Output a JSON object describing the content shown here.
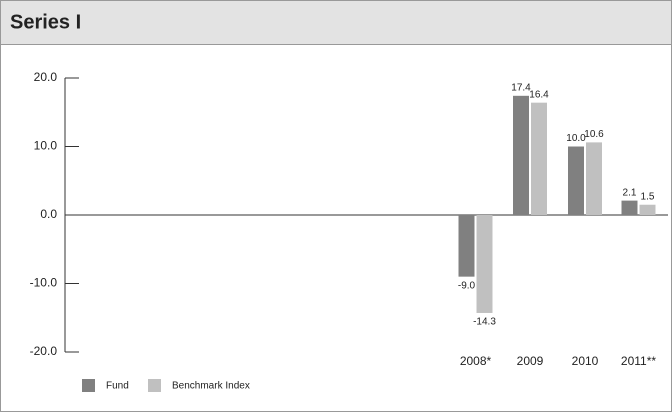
{
  "chart_data": {
    "type": "bar",
    "title": "Series I",
    "categories": [
      "2008*",
      "2009",
      "2010",
      "2011**"
    ],
    "series": [
      {
        "name": "Fund",
        "color": "#808080",
        "values": [
          -9.0,
          17.4,
          10.0,
          2.1
        ],
        "value_labels": [
          "-9.0",
          "17.4",
          "10.0",
          "2.1"
        ]
      },
      {
        "name": "Benchmark Index",
        "color": "#c0c0c0",
        "values": [
          -14.3,
          16.4,
          10.6,
          1.5
        ]
      }
    ],
    "ylim": [
      -20,
      20
    ],
    "yticks": [
      {
        "value": 20,
        "label": "20.0"
      },
      {
        "value": 10,
        "label": "10.0"
      },
      {
        "value": 0,
        "label": "0.0"
      },
      {
        "value": -10,
        "label": "-10.0"
      },
      {
        "value": -20,
        "label": "-20.0"
      }
    ],
    "legend": "bottom-left"
  }
}
